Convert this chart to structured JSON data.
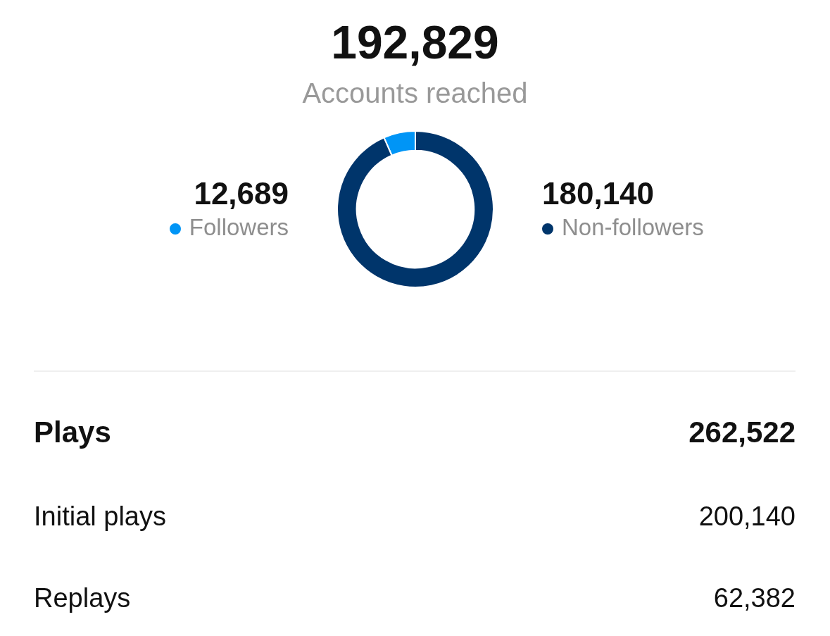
{
  "chart_data": [
    {
      "type": "donut",
      "title": "192,829",
      "subtitle": "Accounts reached",
      "categories": [
        "Followers",
        "Non-followers"
      ],
      "values": [
        12689,
        180140
      ],
      "value_labels": [
        "12,689",
        "180,140"
      ],
      "colors": [
        "#0095f6",
        "#00356b"
      ],
      "legend": "bottom right"
    },
    {
      "type": "other",
      "categories": [
        "Plays",
        "Initial plays",
        "Replays"
      ],
      "value_labels": [
        "262,522",
        "200,140",
        "62,382"
      ]
    }
  ]
}
